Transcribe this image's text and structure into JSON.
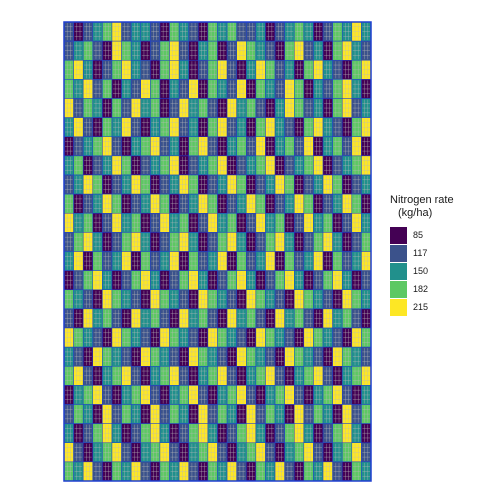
{
  "chart_data": {
    "type": "heatmap",
    "title": "",
    "xlabel": "",
    "ylabel": "",
    "grid": false,
    "legend": {
      "title_line1": "Nitrogen rate",
      "title_line2": "(kg/ha)",
      "placement": "right",
      "entries": [
        {
          "label": "85",
          "color": "#440154"
        },
        {
          "label": "117",
          "color": "#3B528B"
        },
        {
          "label": "150",
          "color": "#21908C"
        },
        {
          "label": "182",
          "color": "#5DC863"
        },
        {
          "label": "215",
          "color": "#FDE725"
        }
      ]
    },
    "colors": {
      "85": "#440154",
      "117": "#3B528B",
      "150": "#21908C",
      "182": "#5DC863",
      "215": "#FDE725",
      "border": "#1F3FD0",
      "subcell_line": "#B9B9B9"
    },
    "rows": [
      [
        117,
        85,
        117,
        150,
        182,
        215,
        117,
        150,
        150,
        117,
        85,
        182,
        150,
        117,
        85,
        182,
        150,
        182,
        117,
        117,
        150,
        85,
        117,
        150,
        182,
        150,
        85,
        117,
        182,
        150,
        215,
        150
      ],
      [
        117,
        150,
        182,
        117,
        85,
        215,
        182,
        150,
        85,
        117,
        182,
        215,
        117,
        85,
        150,
        182,
        85,
        117,
        215,
        182,
        150,
        117,
        85,
        182,
        215,
        117,
        150,
        85,
        182,
        215,
        150,
        117
      ],
      [
        182,
        215,
        150,
        85,
        117,
        182,
        215,
        150,
        117,
        85,
        182,
        215,
        150,
        85,
        117,
        182,
        215,
        117,
        85,
        150,
        215,
        182,
        117,
        150,
        85,
        182,
        215,
        150,
        117,
        85,
        182,
        215
      ],
      [
        182,
        150,
        215,
        117,
        182,
        85,
        150,
        117,
        215,
        182,
        85,
        150,
        117,
        215,
        85,
        182,
        150,
        117,
        215,
        85,
        182,
        150,
        117,
        215,
        182,
        85,
        150,
        117,
        182,
        215,
        150,
        85
      ],
      [
        215,
        117,
        182,
        150,
        85,
        182,
        117,
        215,
        150,
        182,
        85,
        117,
        215,
        150,
        182,
        117,
        85,
        215,
        150,
        182,
        117,
        85,
        150,
        215,
        182,
        117,
        150,
        85,
        182,
        215,
        117,
        150
      ],
      [
        150,
        215,
        117,
        85,
        182,
        150,
        215,
        117,
        85,
        150,
        182,
        215,
        117,
        150,
        85,
        182,
        215,
        117,
        150,
        85,
        182,
        215,
        150,
        117,
        85,
        182,
        215,
        150,
        117,
        85,
        182,
        215
      ],
      [
        85,
        117,
        150,
        182,
        215,
        117,
        85,
        150,
        182,
        215,
        117,
        150,
        85,
        182,
        215,
        117,
        85,
        150,
        182,
        117,
        215,
        85,
        150,
        182,
        117,
        215,
        85,
        150,
        182,
        117,
        215,
        85
      ],
      [
        150,
        182,
        85,
        117,
        150,
        215,
        182,
        85,
        117,
        150,
        182,
        215,
        85,
        117,
        150,
        182,
        215,
        85,
        117,
        150,
        182,
        215,
        85,
        117,
        150,
        182,
        215,
        85,
        117,
        150,
        182,
        215
      ],
      [
        117,
        150,
        215,
        182,
        85,
        117,
        150,
        215,
        182,
        85,
        117,
        150,
        215,
        182,
        85,
        117,
        150,
        215,
        182,
        85,
        117,
        150,
        215,
        182,
        85,
        117,
        150,
        215,
        182,
        85,
        117,
        150
      ],
      [
        182,
        85,
        117,
        150,
        215,
        182,
        85,
        117,
        150,
        215,
        182,
        85,
        117,
        150,
        215,
        182,
        85,
        117,
        150,
        215,
        182,
        85,
        117,
        150,
        215,
        182,
        85,
        117,
        150,
        215,
        182,
        85
      ],
      [
        215,
        150,
        182,
        85,
        117,
        215,
        150,
        182,
        85,
        117,
        215,
        150,
        182,
        85,
        117,
        215,
        150,
        182,
        85,
        117,
        215,
        150,
        182,
        85,
        117,
        215,
        150,
        182,
        85,
        117,
        215,
        150
      ],
      [
        117,
        182,
        215,
        150,
        85,
        117,
        182,
        215,
        150,
        85,
        117,
        182,
        215,
        150,
        85,
        117,
        182,
        215,
        150,
        85,
        117,
        182,
        215,
        150,
        85,
        117,
        182,
        215,
        150,
        85,
        117,
        182
      ],
      [
        150,
        215,
        85,
        182,
        117,
        150,
        215,
        85,
        182,
        117,
        150,
        215,
        85,
        182,
        117,
        150,
        215,
        85,
        182,
        117,
        150,
        215,
        85,
        182,
        117,
        150,
        215,
        85,
        182,
        117,
        150,
        215
      ],
      [
        85,
        117,
        182,
        215,
        150,
        85,
        117,
        182,
        215,
        150,
        85,
        117,
        182,
        215,
        150,
        85,
        117,
        182,
        215,
        150,
        85,
        117,
        182,
        215,
        150,
        85,
        117,
        182,
        215,
        150,
        85,
        117
      ],
      [
        182,
        150,
        117,
        85,
        215,
        182,
        150,
        117,
        85,
        215,
        182,
        150,
        117,
        85,
        215,
        182,
        150,
        117,
        85,
        215,
        182,
        150,
        117,
        85,
        215,
        182,
        150,
        117,
        85,
        215,
        182,
        150
      ],
      [
        117,
        85,
        215,
        150,
        182,
        117,
        85,
        215,
        150,
        182,
        117,
        85,
        215,
        150,
        182,
        117,
        85,
        215,
        150,
        182,
        117,
        85,
        215,
        150,
        182,
        117,
        85,
        215,
        150,
        182,
        117,
        85
      ],
      [
        215,
        182,
        150,
        117,
        85,
        215,
        182,
        150,
        117,
        85,
        215,
        182,
        150,
        117,
        85,
        215,
        182,
        150,
        117,
        85,
        215,
        182,
        150,
        117,
        85,
        215,
        182,
        150,
        117,
        85,
        215,
        182
      ],
      [
        150,
        117,
        85,
        215,
        182,
        150,
        117,
        85,
        215,
        182,
        150,
        117,
        85,
        215,
        182,
        150,
        117,
        85,
        215,
        182,
        150,
        117,
        85,
        215,
        182,
        150,
        117,
        85,
        215,
        182,
        150,
        117
      ],
      [
        182,
        215,
        117,
        85,
        150,
        182,
        215,
        117,
        85,
        150,
        182,
        215,
        117,
        85,
        150,
        182,
        215,
        117,
        85,
        150,
        182,
        215,
        117,
        85,
        150,
        182,
        215,
        117,
        85,
        150,
        182,
        215
      ],
      [
        85,
        150,
        182,
        215,
        117,
        85,
        150,
        182,
        215,
        117,
        85,
        150,
        182,
        215,
        117,
        85,
        150,
        182,
        215,
        117,
        85,
        150,
        182,
        215,
        117,
        85,
        150,
        182,
        215,
        117,
        85,
        150
      ],
      [
        117,
        182,
        150,
        85,
        215,
        117,
        182,
        150,
        85,
        215,
        117,
        182,
        150,
        85,
        215,
        117,
        182,
        150,
        85,
        215,
        117,
        182,
        150,
        85,
        215,
        117,
        182,
        150,
        85,
        215,
        117,
        182
      ],
      [
        150,
        85,
        117,
        182,
        215,
        150,
        85,
        117,
        182,
        215,
        150,
        85,
        117,
        182,
        215,
        150,
        85,
        117,
        182,
        215,
        150,
        85,
        117,
        182,
        215,
        150,
        85,
        117,
        182,
        215,
        150,
        85
      ],
      [
        215,
        117,
        85,
        150,
        182,
        215,
        117,
        85,
        150,
        182,
        215,
        117,
        85,
        150,
        182,
        215,
        117,
        85,
        150,
        182,
        215,
        117,
        85,
        150,
        182,
        215,
        117,
        85,
        150,
        182,
        215,
        117
      ],
      [
        182,
        150,
        215,
        117,
        85,
        182,
        150,
        215,
        117,
        85,
        182,
        150,
        215,
        117,
        85,
        182,
        150,
        215,
        117,
        85,
        182,
        150,
        215,
        117,
        85,
        182,
        150,
        215,
        117,
        85,
        182,
        150
      ]
    ]
  }
}
